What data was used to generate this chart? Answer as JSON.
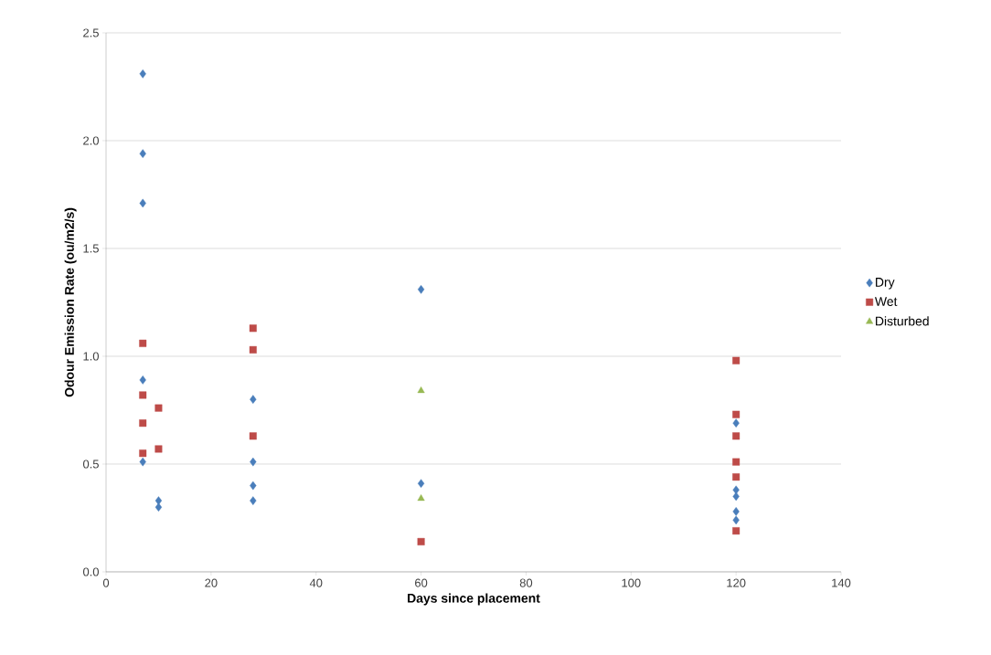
{
  "chart_data": {
    "type": "scatter",
    "xlabel": "Days since placement",
    "ylabel": "Odour Emission Rate (ou/m2/s)",
    "xlim": [
      0,
      140
    ],
    "xticks": [
      0,
      20,
      40,
      60,
      80,
      100,
      120,
      140
    ],
    "ylim": [
      0,
      2.5
    ],
    "yticks": [
      {
        "value": 0,
        "label": "0.0"
      },
      {
        "value": 0.5,
        "label": "0.5"
      },
      {
        "value": 1,
        "label": "1.0"
      },
      {
        "value": 1.5,
        "label": "1.5"
      },
      {
        "value": 2,
        "label": "2.0"
      },
      {
        "value": 2.5,
        "label": "2.5"
      }
    ],
    "grid": "y",
    "legend": "right",
    "series": [
      {
        "name": "Dry",
        "color": "#4a7ebb",
        "marker": "diamond",
        "x": [
          7,
          7,
          7,
          7,
          7,
          10,
          10,
          28,
          28,
          28,
          28,
          60,
          60,
          120,
          120,
          120,
          120,
          120
        ],
        "values": [
          2.31,
          1.94,
          1.71,
          0.89,
          0.51,
          0.33,
          0.3,
          0.8,
          0.51,
          0.4,
          0.33,
          1.31,
          0.41,
          0.69,
          0.38,
          0.35,
          0.28,
          0.24
        ]
      },
      {
        "name": "Wet",
        "color": "#be4b48",
        "marker": "square",
        "x": [
          7,
          7,
          7,
          7,
          10,
          10,
          28,
          28,
          28,
          60,
          120,
          120,
          120,
          120,
          120,
          120
        ],
        "values": [
          1.06,
          0.82,
          0.69,
          0.55,
          0.76,
          0.57,
          1.13,
          1.03,
          0.63,
          0.14,
          0.98,
          0.73,
          0.63,
          0.51,
          0.44,
          0.19
        ]
      },
      {
        "name": "Disturbed",
        "color": "#98b954",
        "marker": "triangle",
        "x": [
          60,
          60
        ],
        "values": [
          0.84,
          0.34
        ]
      }
    ]
  }
}
